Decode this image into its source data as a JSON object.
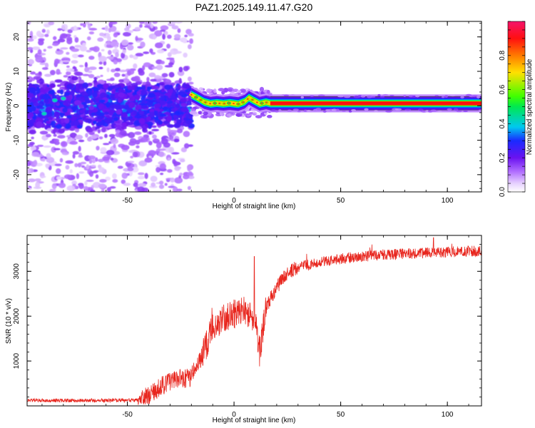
{
  "title": "PAZ1.2025.149.11.47.G20",
  "chart_data": [
    {
      "type": "heatmap",
      "xlabel": "Height of straight line (km)",
      "ylabel": "Frequency (Hz)",
      "xlim": [
        -97,
        116
      ],
      "ylim": [
        -25,
        24.5
      ],
      "x_ticks": [
        -50,
        0,
        50,
        100
      ],
      "x_tick_labels": [
        "-50",
        "0",
        "50",
        "100"
      ],
      "y_ticks": [
        20,
        10,
        0,
        -10,
        -20
      ],
      "y_tick_labels": [
        "20",
        "10",
        "0",
        "-10",
        "-20"
      ],
      "grid": false,
      "colorbar": {
        "label": "Normalized spectral amplitude",
        "range": [
          0,
          1
        ],
        "ticks": [
          0.0,
          0.2,
          0.4,
          0.6,
          0.8
        ],
        "tick_labels": [
          "0.0",
          "0.2",
          "0.4",
          "0.6",
          "0.8"
        ],
        "colormap": "rainbow (white-violet-blue-cyan-green-yellow-red-pink)"
      },
      "regions": [
        {
          "x_range": [
            -97,
            -20
          ],
          "description": "broadband noise, amplitude 0.05-0.3, strongest near 0 Hz"
        },
        {
          "x_range": [
            -20,
            17
          ],
          "description": "emerging carrier near 0.5 Hz with wobble, amplitude 0.4-0.7"
        },
        {
          "x_range": [
            17,
            116
          ],
          "description": "stable carrier at ~0.7 Hz, amplitude ~0.9"
        }
      ],
      "carrier_track": [
        {
          "x": -20,
          "y": 3.2
        },
        {
          "x": -17,
          "y": 2.2
        },
        {
          "x": -14,
          "y": 1.1
        },
        {
          "x": -11,
          "y": 0.6
        },
        {
          "x": -8,
          "y": 0.8
        },
        {
          "x": -5,
          "y": 0.6
        },
        {
          "x": -2,
          "y": 0.8
        },
        {
          "x": 2,
          "y": 0.5
        },
        {
          "x": 5,
          "y": 1.2
        },
        {
          "x": 7,
          "y": 2.3
        },
        {
          "x": 9,
          "y": 1.6
        },
        {
          "x": 12,
          "y": 0.6
        },
        {
          "x": 15,
          "y": 1.0
        },
        {
          "x": 17,
          "y": 0.7
        },
        {
          "x": 116,
          "y": 0.7
        }
      ]
    },
    {
      "type": "line",
      "xlabel": "Height of straight line (km)",
      "ylabel": "SNR (10 * v/v)",
      "xlim": [
        -97,
        116
      ],
      "ylim": [
        0,
        3800
      ],
      "x_ticks": [
        -50,
        0,
        50,
        100
      ],
      "x_tick_labels": [
        "-50",
        "0",
        "50",
        "100"
      ],
      "y_ticks": [
        1000,
        2000,
        3000
      ],
      "y_tick_labels": [
        "1000",
        "2000",
        "3000"
      ],
      "grid": false,
      "series": [
        {
          "name": "SNR",
          "color": "#e8261e",
          "envelope_x": [
            -97,
            -60,
            -45,
            -40,
            -35,
            -30,
            -25,
            -20,
            -15,
            -10,
            -5,
            0,
            5,
            10,
            12,
            15,
            20,
            25,
            30,
            40,
            50,
            60,
            70,
            80,
            90,
            100,
            110,
            116
          ],
          "envelope_y": [
            120,
            120,
            130,
            200,
            420,
            550,
            600,
            650,
            1100,
            1750,
            1950,
            2050,
            2150,
            1900,
            1200,
            2200,
            2650,
            2950,
            3100,
            3200,
            3280,
            3330,
            3370,
            3390,
            3410,
            3430,
            3450,
            3450
          ],
          "notable_points": [
            {
              "x": 9.5,
              "y": 3330
            },
            {
              "x": 12,
              "y": 880
            },
            {
              "x": 93.5,
              "y": 3750
            }
          ]
        }
      ]
    }
  ]
}
